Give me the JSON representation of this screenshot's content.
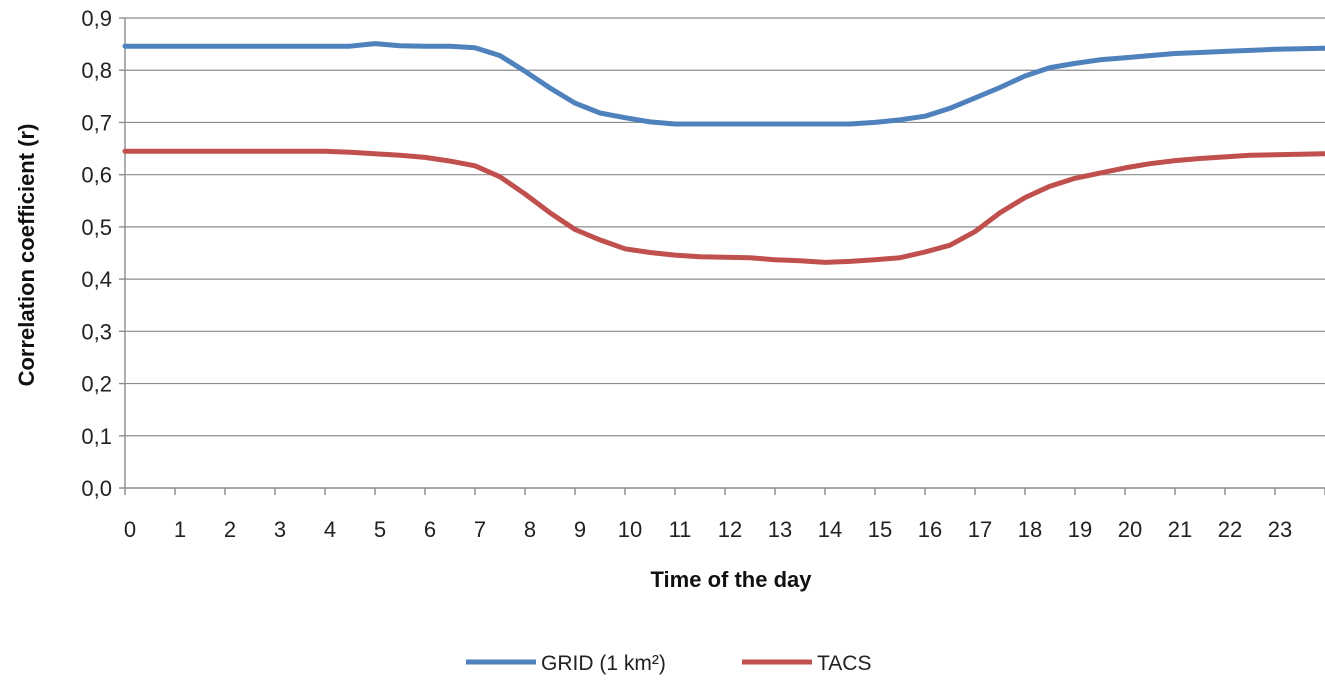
{
  "chart_data": {
    "type": "line",
    "title": "",
    "xlabel": "Time of the day",
    "ylabel": "Correlation coefficient  (r)",
    "xlim": [
      0,
      24
    ],
    "ylim": [
      0,
      0.9
    ],
    "grid": true,
    "legend_position": "bottom",
    "x_ticks": [
      "0",
      "1",
      "2",
      "3",
      "4",
      "5",
      "6",
      "7",
      "8",
      "9",
      "10",
      "11",
      "12",
      "13",
      "14",
      "15",
      "16",
      "17",
      "18",
      "19",
      "20",
      "21",
      "22",
      "23"
    ],
    "y_ticks": [
      "0,0",
      "0,1",
      "0,2",
      "0,3",
      "0,4",
      "0,5",
      "0,6",
      "0,7",
      "0,8",
      "0,9"
    ],
    "series": [
      {
        "name": "GRID (1 km²)",
        "color": "#4f81bd",
        "x": [
          0,
          1,
          2,
          3,
          4,
          4.5,
          5,
          5.5,
          6,
          6.5,
          7,
          7.5,
          8,
          8.5,
          9,
          9.5,
          10,
          10.5,
          11,
          11.5,
          12,
          12.5,
          13,
          13.5,
          14,
          14.5,
          15,
          15.5,
          16,
          16.5,
          17,
          17.5,
          18,
          18.5,
          19,
          19.5,
          20,
          20.5,
          21,
          21.5,
          22,
          22.5,
          23,
          23.5,
          24
        ],
        "y": [
          0.846,
          0.846,
          0.846,
          0.846,
          0.846,
          0.846,
          0.851,
          0.847,
          0.846,
          0.846,
          0.843,
          0.828,
          0.798,
          0.766,
          0.737,
          0.718,
          0.709,
          0.701,
          0.697,
          0.697,
          0.697,
          0.697,
          0.697,
          0.697,
          0.697,
          0.697,
          0.7,
          0.705,
          0.712,
          0.727,
          0.747,
          0.767,
          0.789,
          0.805,
          0.813,
          0.82,
          0.824,
          0.828,
          0.832,
          0.834,
          0.836,
          0.838,
          0.84,
          0.841,
          0.842
        ]
      },
      {
        "name": "TACS",
        "color": "#c0504d",
        "x": [
          0,
          1,
          2,
          3,
          4,
          4.5,
          5,
          5.5,
          6,
          6.5,
          7,
          7.5,
          8,
          8.5,
          9,
          9.5,
          10,
          10.5,
          11,
          11.5,
          12,
          12.5,
          13,
          13.5,
          14,
          14.5,
          15,
          15.5,
          16,
          16.5,
          17,
          17.5,
          18,
          18.5,
          19,
          19.5,
          20,
          20.5,
          21,
          21.5,
          22,
          22.5,
          23,
          23.5,
          24
        ],
        "y": [
          0.645,
          0.645,
          0.645,
          0.645,
          0.645,
          0.643,
          0.64,
          0.637,
          0.633,
          0.626,
          0.617,
          0.596,
          0.563,
          0.527,
          0.495,
          0.475,
          0.458,
          0.451,
          0.446,
          0.443,
          0.442,
          0.441,
          0.437,
          0.435,
          0.432,
          0.434,
          0.437,
          0.441,
          0.452,
          0.465,
          0.491,
          0.527,
          0.556,
          0.578,
          0.593,
          0.603,
          0.613,
          0.621,
          0.627,
          0.631,
          0.634,
          0.637,
          0.638,
          0.639,
          0.64
        ]
      }
    ]
  }
}
